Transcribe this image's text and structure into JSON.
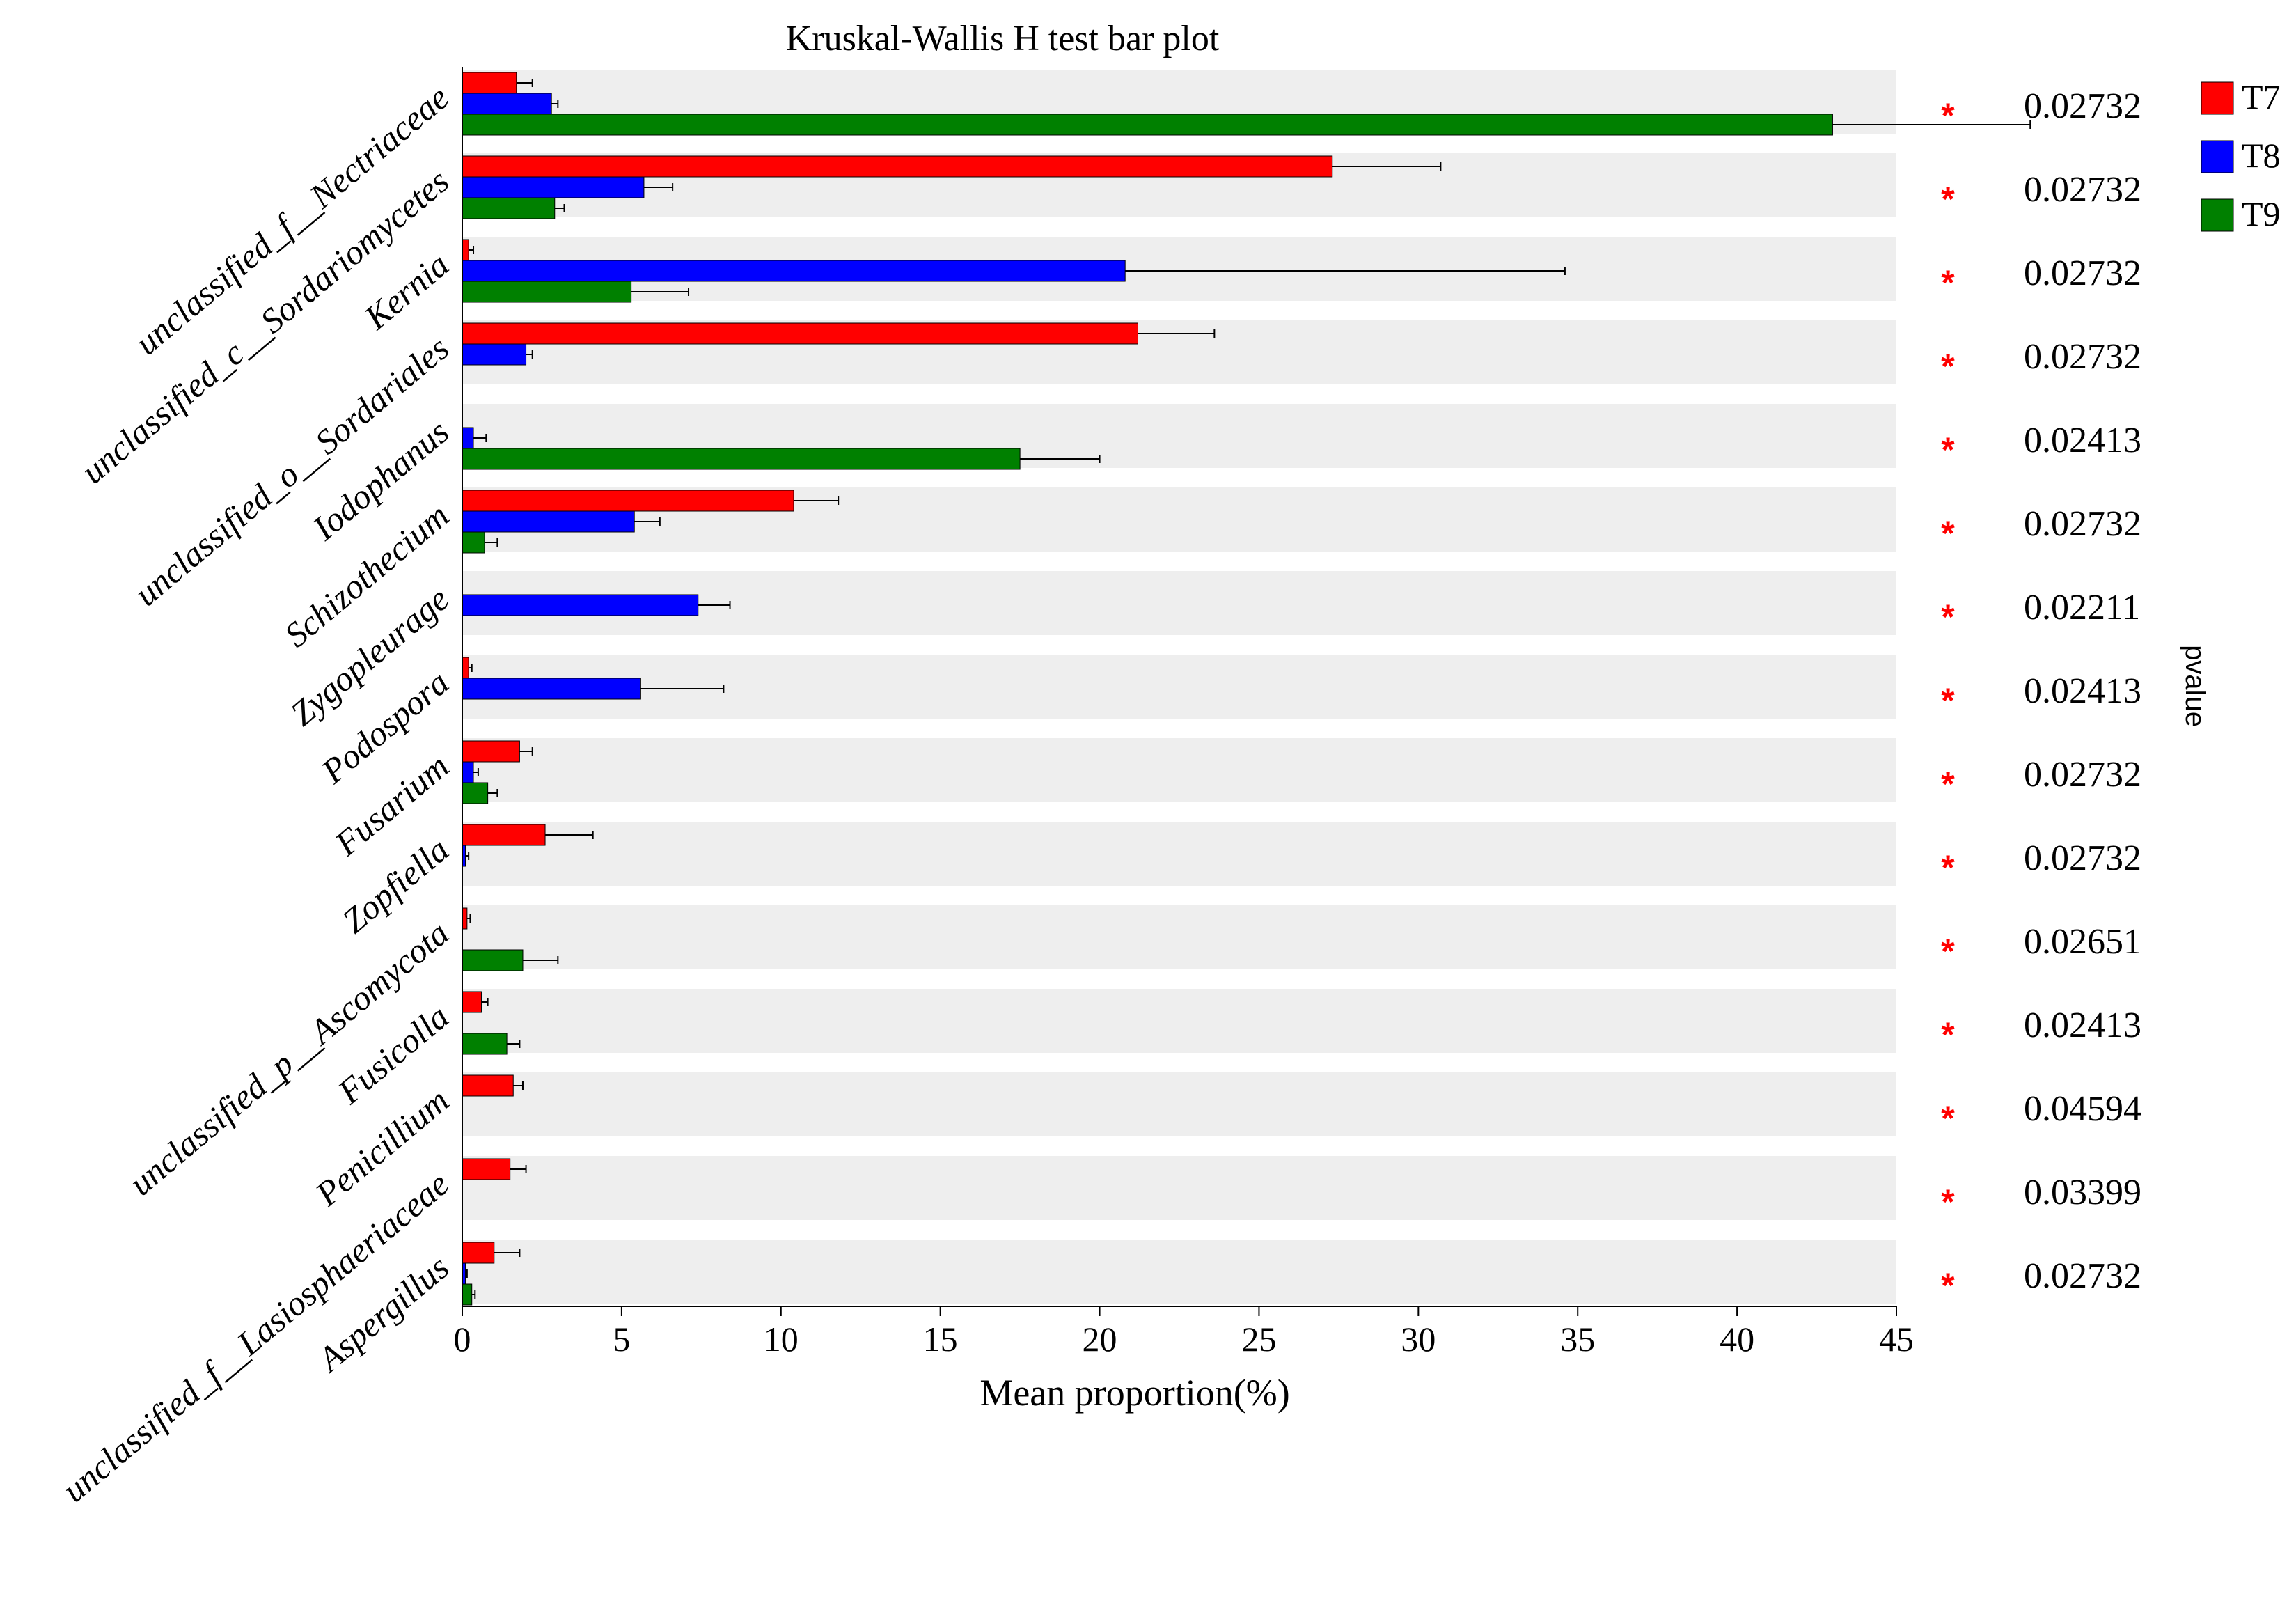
{
  "chart_data": {
    "type": "bar",
    "orientation": "horizontal",
    "title": "Kruskal-Wallis H test bar plot",
    "xlabel": "Mean proportion(%)",
    "pvalue_label": "pvalue",
    "xlim": [
      0,
      45
    ],
    "xticks": [
      0,
      5,
      10,
      15,
      20,
      25,
      30,
      35,
      40,
      45
    ],
    "categories": [
      "unclassified_f__Nectriaceae",
      "unclassified_c__Sordariomycetes",
      "Kernia",
      "unclassified_o__Sordariales",
      "Iodophanus",
      "Schizothecium",
      "Zygopleurage",
      "Podospora",
      "Fusarium",
      "Zopfiella",
      "unclassified_p__Ascomycota",
      "Fusicolla",
      "Penicillium",
      "unclassified_f__Lasiosphaeriaceae",
      "Aspergillus"
    ],
    "series": [
      {
        "name": "T7",
        "color": "#ff0000",
        "values": [
          1.7,
          27.3,
          0.2,
          21.2,
          0.0,
          10.4,
          0.0,
          0.2,
          1.8,
          2.6,
          0.15,
          0.6,
          1.6,
          1.5,
          1.0
        ],
        "errors": [
          0.5,
          3.4,
          0.15,
          2.4,
          0.0,
          1.4,
          0.0,
          0.1,
          0.4,
          1.5,
          0.1,
          0.2,
          0.3,
          0.5,
          0.8
        ]
      },
      {
        "name": "T8",
        "color": "#0000ff",
        "values": [
          2.8,
          5.7,
          20.8,
          2.0,
          0.35,
          5.4,
          7.4,
          5.6,
          0.35,
          0.1,
          0.0,
          0.0,
          0.0,
          0.0,
          0.1
        ],
        "errors": [
          0.2,
          0.9,
          13.8,
          0.2,
          0.4,
          0.8,
          1.0,
          2.6,
          0.15,
          0.1,
          0.0,
          0.0,
          0.0,
          0.0,
          0.05
        ]
      },
      {
        "name": "T9",
        "color": "#008000",
        "values": [
          43.0,
          2.9,
          5.3,
          0.0,
          17.5,
          0.7,
          0.0,
          0.0,
          0.8,
          0.0,
          1.9,
          1.4,
          0.0,
          0.0,
          0.3
        ],
        "errors": [
          6.2,
          0.3,
          1.8,
          0.0,
          2.5,
          0.4,
          0.0,
          0.0,
          0.3,
          0.0,
          1.1,
          0.4,
          0.0,
          0.0,
          0.1
        ]
      }
    ],
    "significance": [
      "*",
      "*",
      "*",
      "*",
      "*",
      "*",
      "*",
      "*",
      "*",
      "*",
      "*",
      "*",
      "*",
      "*",
      "*"
    ],
    "pvalues": [
      "0.02732",
      "0.02732",
      "0.02732",
      "0.02732",
      "0.02413",
      "0.02732",
      "0.02211",
      "0.02413",
      "0.02732",
      "0.02732",
      "0.02651",
      "0.02413",
      "0.04594",
      "0.03399",
      "0.02732"
    ],
    "legend": {
      "position": "right",
      "entries": [
        "T7",
        "T8",
        "T9"
      ]
    },
    "colors": {
      "row_band": "#eeeeee",
      "star": "#ff0000",
      "error_bar": "#000000"
    }
  }
}
